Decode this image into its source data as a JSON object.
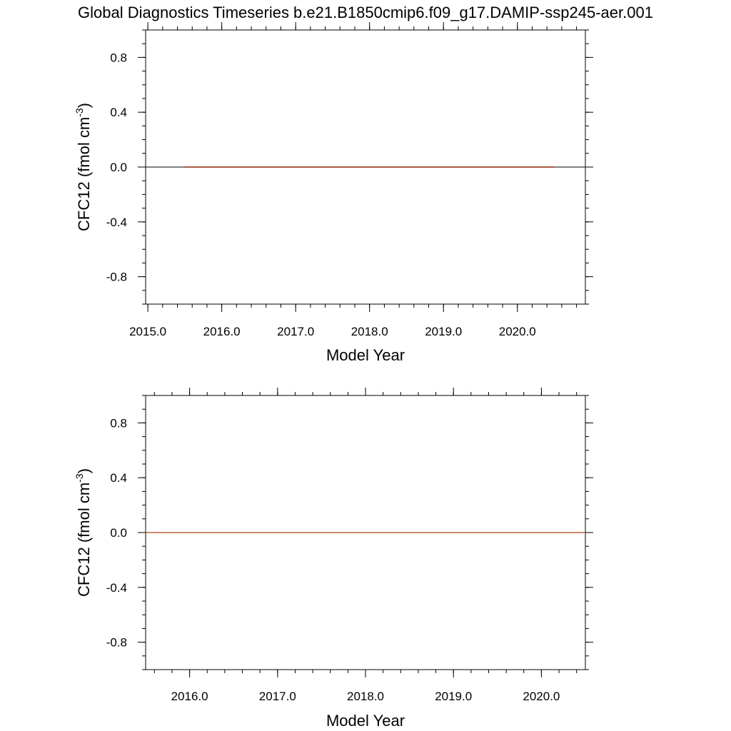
{
  "title": "Global Diagnostics Timeseries b.e21.B1850cmip6.f09_g17.DAMIP-ssp245-aer.001",
  "chart_data": [
    {
      "type": "line",
      "xlabel": "Model Year",
      "ylabel": "CFC12 (fmol cm",
      "ylabel_superscript": "-3",
      "ylabel_close": ")",
      "xlim": [
        2014.97,
        2020.92
      ],
      "ylim": [
        -1.0,
        1.0
      ],
      "xticks": [
        2015.0,
        2016.0,
        2017.0,
        2018.0,
        2019.0,
        2020.0
      ],
      "xtick_labels": [
        "2015.0",
        "2016.0",
        "2017.0",
        "2018.0",
        "2019.0",
        "2020.0"
      ],
      "yticks": [
        0.8,
        0.4,
        0.0,
        -0.4,
        -0.8
      ],
      "ytick_labels": [
        "0.8",
        "0.4",
        "0.0",
        "-0.4",
        "-0.8"
      ],
      "zero_line": true,
      "grid": false,
      "series": [
        {
          "color": "#8b2500",
          "x": [
            2015.5,
            2020.5
          ],
          "y": [
            0.0,
            0.0
          ]
        }
      ]
    },
    {
      "type": "line",
      "xlabel": "Model Year",
      "ylabel": "CFC12 (fmol cm",
      "ylabel_superscript": "-3",
      "ylabel_close": ")",
      "xlim": [
        2015.5,
        2020.5
      ],
      "ylim": [
        -1.0,
        1.0
      ],
      "xticks": [
        2016.0,
        2017.0,
        2018.0,
        2019.0,
        2020.0
      ],
      "xtick_labels": [
        "2016.0",
        "2017.0",
        "2018.0",
        "2019.0",
        "2020.0"
      ],
      "yticks": [
        0.8,
        0.4,
        0.0,
        -0.4,
        -0.8
      ],
      "ytick_labels": [
        "0.8",
        "0.4",
        "0.0",
        "-0.4",
        "-0.8"
      ],
      "zero_line": true,
      "grid": false,
      "series": [
        {
          "color": "#c0603a",
          "x": [
            2015.5,
            2020.5
          ],
          "y": [
            0.0,
            0.0
          ]
        }
      ]
    }
  ]
}
